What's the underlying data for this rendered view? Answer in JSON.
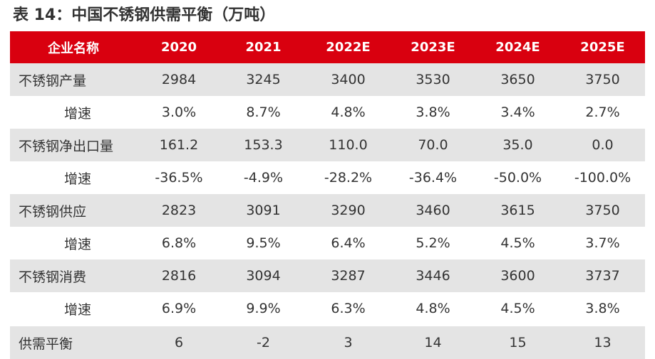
{
  "title": "表 14：中国不锈钢供需平衡（万吨）",
  "header": [
    "企业名称",
    "2020",
    "2021",
    "2022E",
    "2023E",
    "2024E",
    "2025E"
  ],
  "rows": [
    {
      "label": "不锈钢产量",
      "values": [
        "2984",
        "3245",
        "3400",
        "3530",
        "3650",
        "3750"
      ]
    },
    {
      "label": "增速",
      "values": [
        "3.0%",
        "8.7%",
        "4.8%",
        "3.8%",
        "3.4%",
        "2.7%"
      ]
    },
    {
      "label": "不锈钢净出口量",
      "values": [
        "161.2",
        "153.3",
        "110.0",
        "70.0",
        "35.0",
        "0.0"
      ]
    },
    {
      "label": "增速",
      "values": [
        "-36.5%",
        "-4.9%",
        "-28.2%",
        "-36.4%",
        "-50.0%",
        "-100.0%"
      ]
    },
    {
      "label": "不锈钢供应",
      "values": [
        "2823",
        "3091",
        "3290",
        "3460",
        "3615",
        "3750"
      ]
    },
    {
      "label": "增速",
      "values": [
        "6.8%",
        "9.5%",
        "6.4%",
        "5.2%",
        "4.5%",
        "3.7%"
      ]
    },
    {
      "label": "不锈钢消费",
      "values": [
        "2816",
        "3094",
        "3287",
        "3446",
        "3600",
        "3737"
      ]
    },
    {
      "label": "增速",
      "values": [
        "6.9%",
        "9.9%",
        "6.3%",
        "4.8%",
        "4.5%",
        "3.8%"
      ]
    },
    {
      "label": "供需平衡",
      "values": [
        "6",
        "-2",
        "3",
        "14",
        "15",
        "13"
      ]
    }
  ],
  "colors": {
    "header_bg": "#d9000f",
    "header_text": "#ffffff",
    "shaded_row_bg": "#e4e4e4",
    "text": "#333333"
  }
}
